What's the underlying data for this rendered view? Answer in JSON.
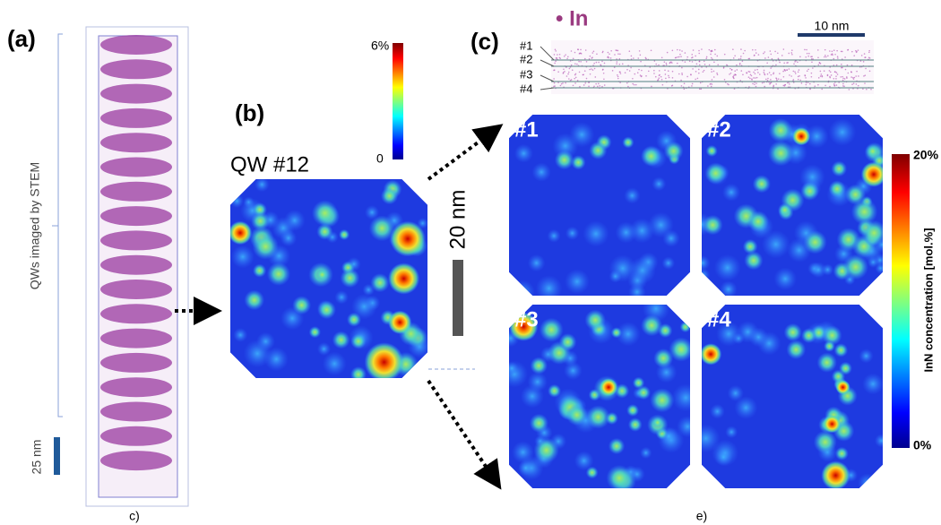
{
  "panel_a": {
    "label": "(a)",
    "axis_label": "QWs imaged by STEM",
    "scale_bar": "25 nm",
    "caption": "c)"
  },
  "panel_b": {
    "label": "(b)",
    "title": "QW #12",
    "colorbar_max": "6%",
    "colorbar_min": "0",
    "scale_bar": "20 nm"
  },
  "panel_c": {
    "label": "(c)",
    "element": "• In",
    "scale_bar": "10 nm",
    "layers": [
      "#1",
      "#2",
      "#3",
      "#4"
    ],
    "maps": [
      "#1",
      "#2",
      "#3",
      "#4"
    ],
    "colorbar_max": "20%",
    "colorbar_min": "0%",
    "colorbar_label": "InN concentration [mol.%]",
    "caption": "e)"
  }
}
